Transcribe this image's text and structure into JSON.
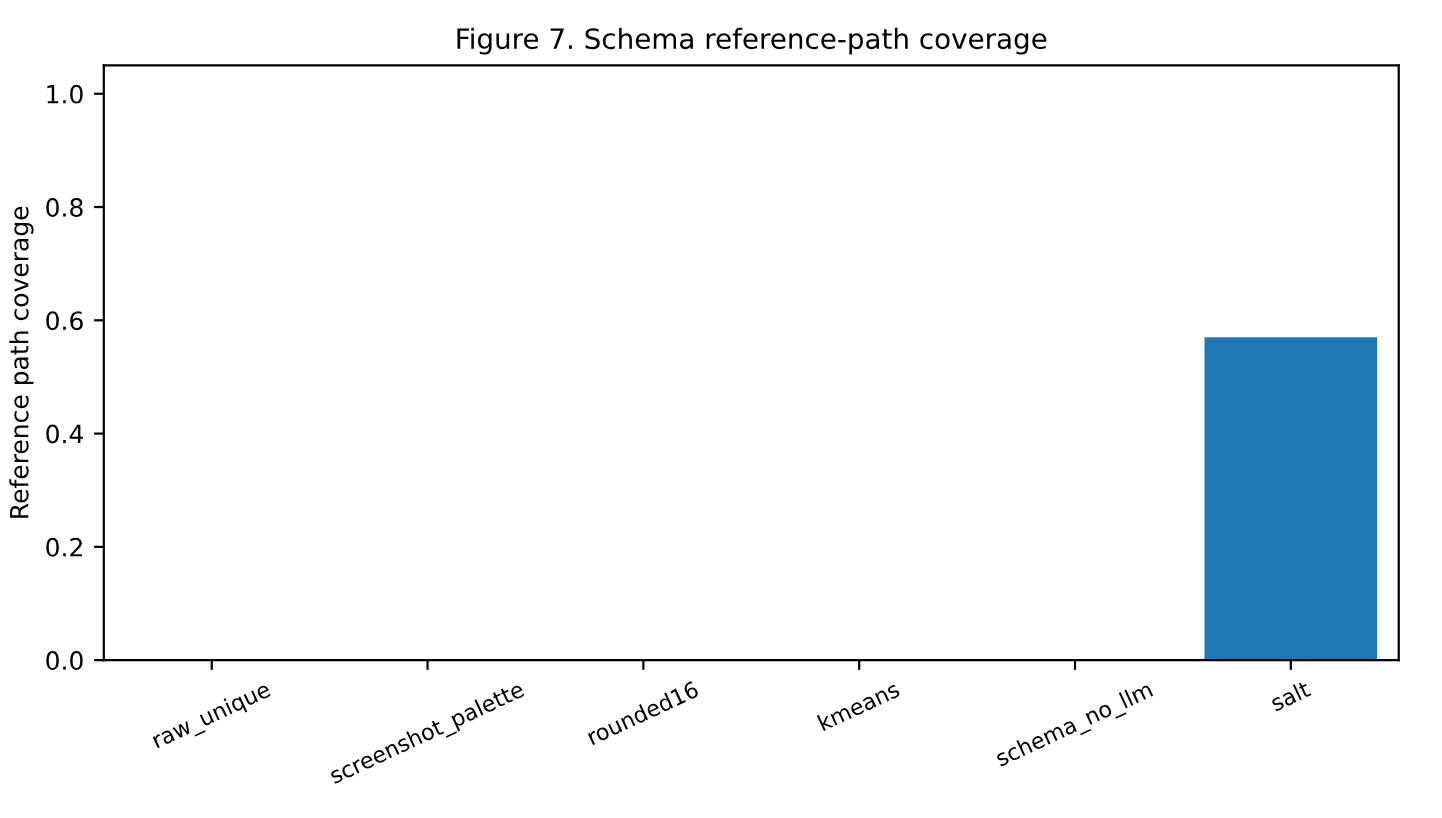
{
  "chart_data": {
    "type": "bar",
    "title": "Figure 7. Schema reference-path coverage",
    "ylabel": "Reference path coverage",
    "categories": [
      "raw_unique",
      "screenshot_palette",
      "rounded16",
      "kmeans",
      "schema_no_llm",
      "salt"
    ],
    "values": [
      0,
      0,
      0,
      0,
      0,
      0.57
    ],
    "color": "#1f77b4",
    "ylim": [
      0,
      1.05
    ],
    "yticks": [
      {
        "value": 0,
        "label": "0.0"
      },
      0.2,
      0.4,
      0.6,
      0.8,
      {
        "value": 1,
        "label": "1.0"
      }
    ],
    "grid": false
  }
}
